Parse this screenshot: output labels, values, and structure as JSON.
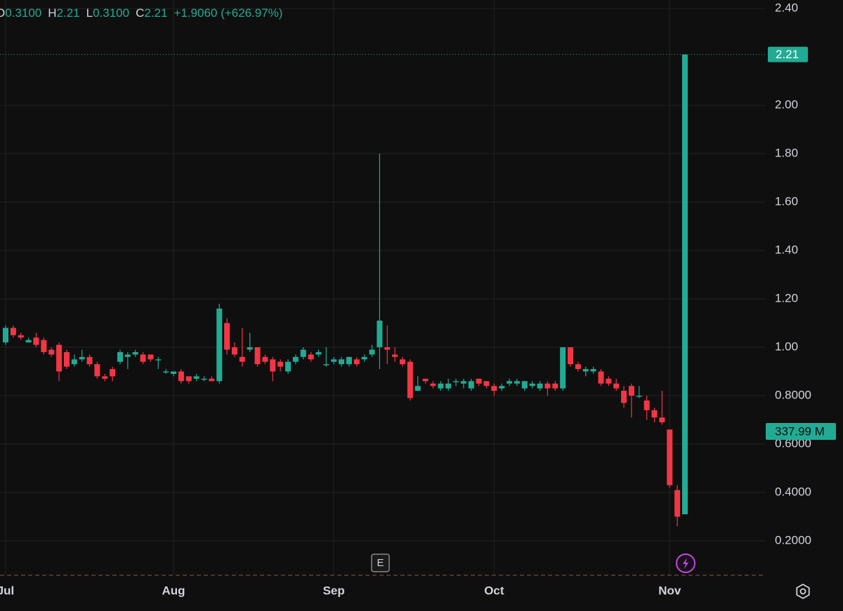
{
  "chart_data": {
    "type": "candlestick",
    "legend": [
      {
        "key": "O",
        "value": "0.3100"
      },
      {
        "key": "H",
        "value": "2.21"
      },
      {
        "key": "L",
        "value": "0.3100"
      },
      {
        "key": "C",
        "value": "2.21"
      }
    ],
    "change": "+1.9060 (+626.97%)",
    "price_tag": {
      "value": 2.21,
      "label": "2.21"
    },
    "cap_tag": "337.99 M",
    "earnings_badge": "E",
    "up_color": "#22ab94",
    "down_color": "#f23645",
    "grid": true,
    "ylim": [
      0.058,
      2.435
    ],
    "yticks": [
      {
        "value": 0.2,
        "label": "0.2000"
      },
      {
        "value": 0.4,
        "label": "0.4000"
      },
      {
        "value": 0.6,
        "label": "0.6000"
      },
      {
        "value": 0.8,
        "label": "0.8000"
      },
      {
        "value": 1.0,
        "label": "1.00"
      },
      {
        "value": 1.2,
        "label": "1.20"
      },
      {
        "value": 1.4,
        "label": "1.40"
      },
      {
        "value": 1.6,
        "label": "1.60"
      },
      {
        "value": 1.8,
        "label": "1.80"
      },
      {
        "value": 2.0,
        "label": "2.00"
      },
      {
        "value": 2.4,
        "label": "2.40"
      }
    ],
    "categories": [
      "Jul",
      null,
      null,
      null,
      null,
      null,
      null,
      null,
      null,
      null,
      null,
      null,
      null,
      null,
      null,
      null,
      null,
      null,
      null,
      null,
      null,
      null,
      "Aug",
      null,
      null,
      null,
      null,
      null,
      null,
      null,
      null,
      null,
      null,
      null,
      null,
      null,
      null,
      null,
      null,
      null,
      null,
      null,
      null,
      "Sep",
      null,
      null,
      null,
      null,
      null,
      null,
      null,
      null,
      null,
      null,
      null,
      null,
      null,
      null,
      null,
      null,
      null,
      null,
      null,
      null,
      "Oct",
      null,
      null,
      null,
      null,
      null,
      null,
      null,
      null,
      null,
      null,
      null,
      null,
      null,
      null,
      null,
      null,
      null,
      null,
      null,
      null,
      null,
      null,
      "Nov",
      null,
      null
    ],
    "open": [
      1.02,
      1.08,
      1.05,
      1.02,
      1.04,
      1.03,
      0.99,
      1.01,
      0.98,
      0.93,
      0.95,
      0.96,
      0.93,
      0.88,
      0.91,
      0.94,
      0.96,
      0.97,
      0.97,
      0.97,
      0.95,
      0.9,
      0.89,
      0.9,
      0.88,
      0.87,
      0.87,
      0.87,
      0.86,
      1.1,
      1.0,
      0.96,
      0.99,
      1.0,
      0.96,
      0.95,
      0.94,
      0.9,
      0.94,
      0.96,
      0.97,
      0.97,
      0.93,
      0.94,
      0.93,
      0.93,
      0.95,
      0.95,
      0.97,
      1.0,
      1.0,
      0.97,
      0.95,
      0.94,
      0.82,
      0.87,
      0.85,
      0.83,
      0.83,
      0.86,
      0.85,
      0.83,
      0.87,
      0.86,
      0.84,
      0.83,
      0.85,
      0.85,
      0.83,
      0.84,
      0.83,
      0.85,
      0.85,
      0.83,
      1.0,
      0.93,
      0.9,
      0.9,
      0.9,
      0.87,
      0.85,
      0.82,
      0.84,
      0.8,
      0.78,
      0.74,
      0.71,
      0.66,
      0.41,
      0.31
    ],
    "high": [
      1.09,
      1.09,
      1.06,
      1.04,
      1.06,
      1.04,
      1.0,
      1.02,
      0.99,
      0.97,
      0.99,
      0.97,
      0.94,
      0.89,
      0.92,
      0.99,
      0.98,
      0.99,
      0.98,
      0.97,
      0.96,
      0.91,
      0.9,
      0.91,
      0.88,
      0.89,
      0.88,
      0.88,
      1.18,
      1.12,
      1.02,
      1.08,
      1.06,
      1.0,
      0.97,
      0.96,
      0.95,
      0.95,
      0.97,
      1.0,
      0.98,
      0.99,
      1.0,
      0.96,
      0.96,
      0.96,
      0.96,
      0.97,
      1.01,
      1.8,
      1.09,
      1.0,
      0.96,
      0.95,
      0.88,
      0.87,
      0.86,
      0.86,
      0.87,
      0.87,
      0.87,
      0.87,
      0.87,
      0.86,
      0.85,
      0.85,
      0.87,
      0.87,
      0.86,
      0.86,
      0.86,
      0.86,
      0.86,
      1.0,
      1.0,
      0.94,
      0.92,
      0.92,
      0.91,
      0.88,
      0.87,
      0.84,
      0.85,
      0.84,
      0.8,
      0.75,
      0.82,
      0.66,
      0.43,
      2.21
    ],
    "low": [
      1.01,
      1.04,
      1.03,
      1.02,
      1.0,
      0.97,
      0.96,
      0.86,
      0.91,
      0.92,
      0.94,
      0.92,
      0.87,
      0.86,
      0.86,
      0.93,
      0.91,
      0.96,
      0.93,
      0.94,
      0.91,
      0.89,
      0.88,
      0.85,
      0.85,
      0.86,
      0.86,
      0.86,
      0.85,
      0.97,
      0.96,
      0.92,
      0.98,
      0.92,
      0.93,
      0.86,
      0.9,
      0.89,
      0.93,
      0.95,
      0.94,
      0.96,
      0.92,
      0.93,
      0.92,
      0.92,
      0.92,
      0.94,
      0.96,
      0.91,
      0.93,
      0.94,
      0.92,
      0.78,
      0.82,
      0.85,
      0.83,
      0.82,
      0.82,
      0.84,
      0.83,
      0.82,
      0.84,
      0.83,
      0.8,
      0.82,
      0.84,
      0.84,
      0.82,
      0.83,
      0.82,
      0.8,
      0.82,
      0.82,
      0.92,
      0.9,
      0.88,
      0.89,
      0.84,
      0.84,
      0.82,
      0.75,
      0.71,
      0.79,
      0.7,
      0.69,
      0.68,
      0.42,
      0.26,
      0.31
    ],
    "close": [
      1.08,
      1.05,
      1.04,
      1.03,
      1.01,
      0.98,
      0.97,
      0.9,
      0.92,
      0.95,
      0.96,
      0.93,
      0.88,
      0.87,
      0.88,
      0.98,
      0.97,
      0.98,
      0.94,
      0.95,
      0.95,
      0.9,
      0.9,
      0.86,
      0.86,
      0.88,
      0.87,
      0.86,
      1.16,
      0.99,
      0.97,
      0.94,
      1.0,
      0.93,
      0.94,
      0.9,
      0.92,
      0.94,
      0.96,
      0.99,
      0.95,
      0.98,
      0.93,
      0.95,
      0.95,
      0.96,
      0.93,
      0.96,
      0.99,
      1.11,
      0.99,
      0.96,
      0.93,
      0.79,
      0.84,
      0.86,
      0.84,
      0.85,
      0.85,
      0.86,
      0.86,
      0.86,
      0.85,
      0.84,
      0.82,
      0.84,
      0.86,
      0.86,
      0.86,
      0.85,
      0.85,
      0.83,
      0.83,
      1.0,
      0.93,
      0.91,
      0.91,
      0.91,
      0.85,
      0.85,
      0.83,
      0.77,
      0.8,
      0.8,
      0.74,
      0.71,
      0.69,
      0.43,
      0.3,
      2.21
    ]
  }
}
